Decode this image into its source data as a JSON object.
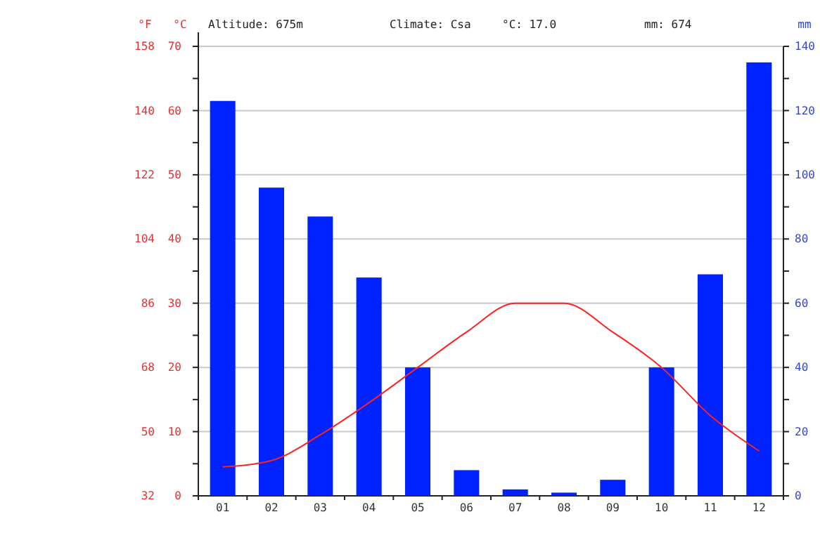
{
  "chart_data": {
    "type": "bar",
    "categories": [
      "01",
      "02",
      "03",
      "04",
      "05",
      "06",
      "07",
      "08",
      "09",
      "10",
      "11",
      "12"
    ],
    "series": [
      {
        "axis": "y2",
        "color": "#0022ff",
        "values": [
          123,
          96,
          87,
          68,
          40,
          8,
          2,
          1,
          5,
          40,
          69,
          135
        ]
      },
      {
        "type": "line",
        "axis": "y",
        "color": "#ff2020",
        "values": [
          4.5,
          5.5,
          9.5,
          14.5,
          20,
          25.5,
          30,
          30,
          25.5,
          20,
          12.5,
          7
        ]
      }
    ],
    "ylabel": "°C",
    "y2label": "mm",
    "y3label": "°F",
    "ylim": [
      0,
      70
    ],
    "yticks": [
      0,
      {
        "value": 5,
        "label": null
      },
      10,
      {
        "value": 15,
        "label": null
      },
      20,
      {
        "value": 25,
        "label": null
      },
      30,
      {
        "value": 35,
        "label": null
      },
      40,
      {
        "value": 45,
        "label": null
      },
      50,
      {
        "value": 55,
        "label": null
      },
      60,
      {
        "value": 65,
        "label": null
      },
      70
    ],
    "y2lim": [
      0,
      140
    ],
    "y2ticks": [
      0,
      {
        "value": 10,
        "label": null
      },
      20,
      {
        "value": 30,
        "label": null
      },
      40,
      {
        "value": 50,
        "label": null
      },
      60,
      {
        "value": 70,
        "label": null
      },
      80,
      {
        "value": 90,
        "label": null
      },
      100,
      {
        "value": 110,
        "label": null
      },
      120,
      {
        "value": 130,
        "label": null
      },
      140
    ],
    "y3lim": [
      32,
      158
    ],
    "y3ticks": [
      32,
      50,
      68,
      86,
      104,
      122,
      140,
      158
    ],
    "grid": "y",
    "line_style": "solid",
    "marker": "none",
    "annotations": [
      "Altitude: 675m",
      "Climate: Csa",
      "°C: 17.0",
      "mm: 674"
    ]
  }
}
